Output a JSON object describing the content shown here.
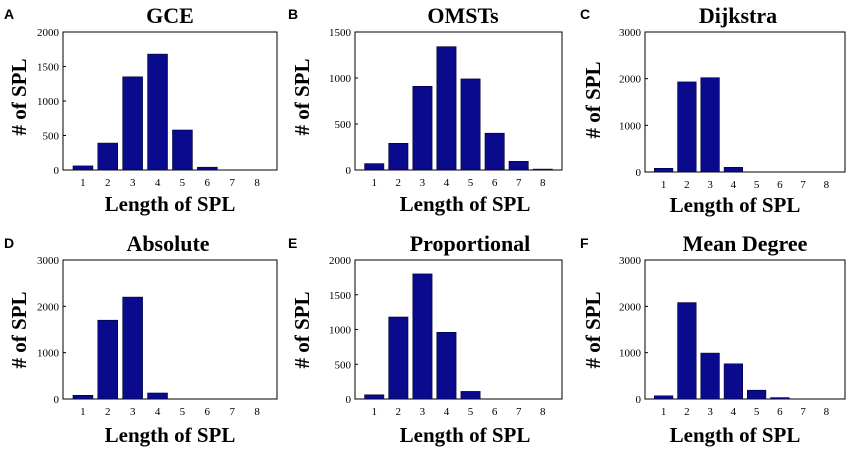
{
  "colors": {
    "bar": "#0a0a8c",
    "bar_stroke": "#000033"
  },
  "chart_data": [
    {
      "panel": "A",
      "type": "bar",
      "title": "GCE",
      "xlabel": "Length of SPL",
      "ylabel": "# of SPL",
      "categories": [
        "1",
        "2",
        "3",
        "4",
        "5",
        "6",
        "7",
        "8"
      ],
      "ylim": [
        0,
        2000
      ],
      "yticks": [
        "0",
        "500",
        "1000",
        "1500",
        "2000"
      ],
      "ytick_values": [
        0,
        500,
        1000,
        1500,
        2000
      ],
      "values": [
        60,
        390,
        1350,
        1680,
        580,
        40,
        0,
        0
      ]
    },
    {
      "panel": "B",
      "type": "bar",
      "title": "OMSTs",
      "xlabel": "Length of SPL",
      "ylabel": "# of SPL",
      "categories": [
        "1",
        "2",
        "3",
        "4",
        "5",
        "6",
        "7",
        "8"
      ],
      "ylim": [
        0,
        1500
      ],
      "yticks": [
        "0",
        "500",
        "1000",
        "1500"
      ],
      "ytick_values": [
        0,
        500,
        1000,
        1500
      ],
      "values": [
        70,
        290,
        910,
        1340,
        990,
        400,
        95,
        10
      ]
    },
    {
      "panel": "C",
      "type": "bar",
      "title": "Dijkstra",
      "xlabel": "Length of SPL",
      "ylabel": "# of SPL",
      "categories": [
        "1",
        "2",
        "3",
        "4",
        "5",
        "6",
        "7",
        "8"
      ],
      "ylim": [
        0,
        3000
      ],
      "yticks": [
        "0",
        "1000",
        "2000",
        "3000"
      ],
      "ytick_values": [
        0,
        1000,
        2000,
        3000
      ],
      "values": [
        80,
        1930,
        2020,
        100,
        0,
        0,
        0,
        0
      ]
    },
    {
      "panel": "D",
      "type": "bar",
      "title": "Absolute",
      "xlabel": "Length of SPL",
      "ylabel": "# of SPL",
      "categories": [
        "1",
        "2",
        "3",
        "4",
        "5",
        "6",
        "7",
        "8"
      ],
      "ylim": [
        0,
        3000
      ],
      "yticks": [
        "0",
        "1000",
        "2000",
        "3000"
      ],
      "ytick_values": [
        0,
        1000,
        2000,
        3000
      ],
      "values": [
        80,
        1700,
        2200,
        130,
        0,
        0,
        0,
        0
      ]
    },
    {
      "panel": "E",
      "type": "bar",
      "title": "Proportional",
      "xlabel": "Length of SPL",
      "ylabel": "# of SPL",
      "categories": [
        "1",
        "2",
        "3",
        "4",
        "5",
        "6",
        "7",
        "8"
      ],
      "ylim": [
        0,
        2000
      ],
      "yticks": [
        "0",
        "500",
        "1000",
        "1500",
        "2000"
      ],
      "ytick_values": [
        0,
        500,
        1000,
        1500,
        2000
      ],
      "values": [
        60,
        1180,
        1800,
        960,
        110,
        0,
        0,
        0
      ]
    },
    {
      "panel": "F",
      "type": "bar",
      "title": "Mean Degree",
      "xlabel": "Length of SPL",
      "ylabel": "# of SPL",
      "categories": [
        "1",
        "2",
        "3",
        "4",
        "5",
        "6",
        "7",
        "8"
      ],
      "ylim": [
        0,
        3000
      ],
      "yticks": [
        "0",
        "1000",
        "2000",
        "3000"
      ],
      "ytick_values": [
        0,
        1000,
        2000,
        3000
      ],
      "values": [
        70,
        2080,
        990,
        760,
        190,
        30,
        0,
        0
      ]
    }
  ]
}
